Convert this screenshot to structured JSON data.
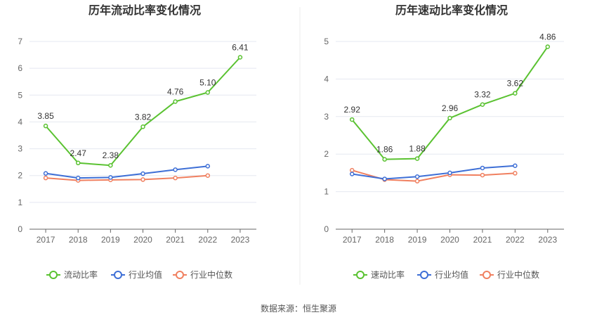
{
  "source": "数据来源：恒生聚源",
  "colors": {
    "main": "#5ac231",
    "industry_avg": "#3e6fd6",
    "industry_median": "#f08060",
    "grid": "#e5e8f0",
    "axis": "#666666"
  },
  "chart_data": [
    {
      "type": "line",
      "title": "历年流动比率变化情况",
      "xlabel": "",
      "ylabel": "",
      "categories": [
        "2017",
        "2018",
        "2019",
        "2020",
        "2021",
        "2022",
        "2023"
      ],
      "ylim": [
        0,
        7
      ],
      "yticks": [
        "0",
        "1",
        "2",
        "3",
        "4",
        "5",
        "6",
        "7"
      ],
      "grid": true,
      "legend_position": "bottom",
      "series": [
        {
          "name": "流动比率",
          "color": "#5ac231",
          "labeled": true,
          "values": [
            3.85,
            2.47,
            2.38,
            3.82,
            4.76,
            5.1,
            6.41
          ],
          "labels": [
            "3.85",
            "2.47",
            "2.38",
            "3.82",
            "4.76",
            "5.10",
            "6.41"
          ]
        },
        {
          "name": "行业均值",
          "color": "#3e6fd6",
          "labeled": false,
          "values": [
            2.08,
            1.91,
            1.93,
            2.07,
            2.22,
            2.35,
            null
          ]
        },
        {
          "name": "行业中位数",
          "color": "#f08060",
          "labeled": false,
          "values": [
            1.91,
            1.82,
            1.84,
            1.85,
            1.91,
            2.0,
            null
          ]
        }
      ]
    },
    {
      "type": "line",
      "title": "历年速动比率变化情况",
      "xlabel": "",
      "ylabel": "",
      "categories": [
        "2017",
        "2018",
        "2019",
        "2020",
        "2021",
        "2022",
        "2023"
      ],
      "ylim": [
        0,
        5
      ],
      "yticks": [
        "0",
        "1",
        "2",
        "3",
        "4",
        "5"
      ],
      "grid": true,
      "legend_position": "bottom",
      "series": [
        {
          "name": "速动比率",
          "color": "#5ac231",
          "labeled": true,
          "values": [
            2.92,
            1.86,
            1.88,
            2.96,
            3.32,
            3.62,
            4.86
          ],
          "labels": [
            "2.92",
            "1.86",
            "1.88",
            "2.96",
            "3.32",
            "3.62",
            "4.86"
          ]
        },
        {
          "name": "行业均值",
          "color": "#3e6fd6",
          "labeled": false,
          "values": [
            1.47,
            1.34,
            1.4,
            1.5,
            1.63,
            1.69,
            null
          ]
        },
        {
          "name": "行业中位数",
          "color": "#f08060",
          "labeled": false,
          "values": [
            1.57,
            1.32,
            1.28,
            1.45,
            1.44,
            1.49,
            null
          ]
        }
      ]
    }
  ]
}
